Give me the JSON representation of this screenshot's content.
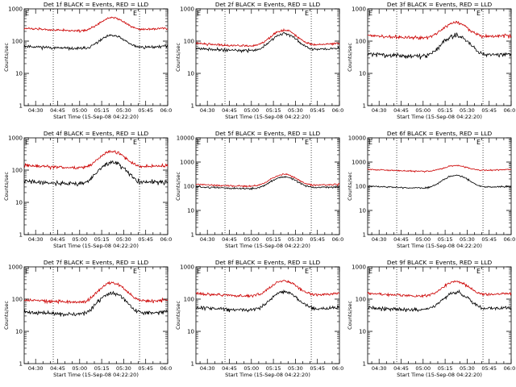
{
  "figure": {
    "ylabel": "Counts/sec",
    "xlabel": "Start Time (15-Sep-08 04:22:20)",
    "colors": {
      "events": "#000000",
      "lld": "#cc0000",
      "axes": "#000000",
      "background": "#ffffff"
    }
  },
  "chart_data": [
    {
      "type": "line",
      "title": "Det 1f BLACK = Events, RED = LLD",
      "marker_e": [
        "E",
        "E"
      ],
      "e_lines": [
        4.7,
        5.68
      ],
      "xlim": [
        4.37,
        6.0
      ],
      "xticks": [
        "04:30",
        "04:45",
        "05:00",
        "05:15",
        "05:30",
        "05:45",
        "06:00"
      ],
      "yscale": "log",
      "ylim": [
        1,
        1000
      ],
      "yticks": [
        "1",
        "10",
        "100",
        "1000"
      ],
      "series": [
        {
          "base": 70,
          "peak": 160,
          "noise": 0.05,
          "seed": 11
        },
        {
          "base": 250,
          "peak": 580,
          "noise": 0.04,
          "seed": 12
        }
      ]
    },
    {
      "type": "line",
      "title": "Det 2f BLACK = Events, RED = LLD",
      "marker_e": [
        "E",
        "E"
      ],
      "e_lines": [
        4.7,
        5.68
      ],
      "xlim": [
        4.37,
        6.0
      ],
      "xticks": [
        "04:30",
        "04:45",
        "05:00",
        "05:15",
        "05:30",
        "05:45",
        "06:00"
      ],
      "yscale": "log",
      "ylim": [
        1,
        1000
      ],
      "yticks": [
        "1",
        "10",
        "100",
        "1000"
      ],
      "series": [
        {
          "base": 60,
          "peak": 180,
          "noise": 0.05,
          "seed": 21
        },
        {
          "base": 85,
          "peak": 230,
          "noise": 0.04,
          "seed": 22
        }
      ]
    },
    {
      "type": "line",
      "title": "Det 3f BLACK = Events, RED = LLD",
      "marker_e": [
        "E",
        "E"
      ],
      "e_lines": [
        4.7,
        5.68
      ],
      "xlim": [
        4.37,
        6.0
      ],
      "xticks": [
        "04:30",
        "04:45",
        "05:00",
        "05:15",
        "05:30",
        "05:45",
        "06:00"
      ],
      "yscale": "log",
      "ylim": [
        1,
        1000
      ],
      "yticks": [
        "1",
        "10",
        "100",
        "1000"
      ],
      "series": [
        {
          "base": 40,
          "peak": 160,
          "noise": 0.08,
          "seed": 31
        },
        {
          "base": 150,
          "peak": 400,
          "noise": 0.06,
          "seed": 32
        }
      ]
    },
    {
      "type": "line",
      "title": "Det 4f BLACK = Events, RED = LLD",
      "marker_e": [
        "E",
        "E"
      ],
      "e_lines": [
        4.7,
        5.68
      ],
      "xlim": [
        4.37,
        6.0
      ],
      "xticks": [
        "04:30",
        "04:45",
        "05:00",
        "05:15",
        "05:30",
        "05:45",
        "06:00"
      ],
      "yscale": "log",
      "ylim": [
        1,
        1000
      ],
      "yticks": [
        "1",
        "10",
        "100",
        "1000"
      ],
      "series": [
        {
          "base": 45,
          "peak": 180,
          "noise": 0.08,
          "seed": 41
        },
        {
          "base": 140,
          "peak": 400,
          "noise": 0.06,
          "seed": 42
        }
      ]
    },
    {
      "type": "line",
      "title": "Det 5f BLACK = Events, RED = LLD",
      "marker_e": [
        "E",
        "E"
      ],
      "e_lines": [
        4.7,
        5.68
      ],
      "xlim": [
        4.37,
        6.0
      ],
      "xticks": [
        "04:30",
        "04:45",
        "05:00",
        "05:15",
        "05:30",
        "05:45",
        "06:00"
      ],
      "yscale": "log",
      "ylim": [
        1,
        10000
      ],
      "yticks": [
        "1",
        "10",
        "100",
        "1000",
        "10000"
      ],
      "series": [
        {
          "base": 95,
          "peak": 260,
          "noise": 0.04,
          "seed": 51
        },
        {
          "base": 120,
          "peak": 330,
          "noise": 0.04,
          "seed": 52
        }
      ]
    },
    {
      "type": "line",
      "title": "Det 6f BLACK = Events, RED = LLD",
      "marker_e": [
        "E",
        "E"
      ],
      "e_lines": [
        4.7,
        5.68
      ],
      "xlim": [
        4.37,
        6.0
      ],
      "xticks": [
        "04:30",
        "04:45",
        "05:00",
        "05:15",
        "05:30",
        "05:45",
        "06:00"
      ],
      "yscale": "log",
      "ylim": [
        1,
        10000
      ],
      "yticks": [
        "1",
        "10",
        "100",
        "1000",
        "10000"
      ],
      "series": [
        {
          "base": 100,
          "peak": 300,
          "noise": 0.04,
          "seed": 61
        },
        {
          "base": 500,
          "peak": 800,
          "noise": 0.03,
          "seed": 62
        }
      ]
    },
    {
      "type": "line",
      "title": "Det 7f BLACK = Events, RED = LLD",
      "marker_e": [
        "E",
        "E"
      ],
      "e_lines": [
        4.7,
        5.68
      ],
      "xlim": [
        4.37,
        6.0
      ],
      "xticks": [
        "04:30",
        "04:45",
        "05:00",
        "05:15",
        "05:30",
        "05:45",
        "06:00"
      ],
      "yscale": "log",
      "ylim": [
        1,
        1000
      ],
      "yticks": [
        "1",
        "10",
        "100",
        "1000"
      ],
      "series": [
        {
          "base": 40,
          "peak": 160,
          "noise": 0.07,
          "seed": 71
        },
        {
          "base": 95,
          "peak": 340,
          "noise": 0.06,
          "seed": 72
        }
      ]
    },
    {
      "type": "line",
      "title": "Det 8f BLACK = Events, RED = LLD",
      "marker_e": [
        "E",
        "E"
      ],
      "e_lines": [
        4.7,
        5.68
      ],
      "xlim": [
        4.37,
        6.0
      ],
      "xticks": [
        "04:30",
        "04:45",
        "05:00",
        "05:15",
        "05:30",
        "05:45",
        "06:00"
      ],
      "yscale": "log",
      "ylim": [
        1,
        1000
      ],
      "yticks": [
        "1",
        "10",
        "100",
        "1000"
      ],
      "series": [
        {
          "base": 55,
          "peak": 180,
          "noise": 0.07,
          "seed": 81
        },
        {
          "base": 150,
          "peak": 400,
          "noise": 0.05,
          "seed": 82
        }
      ]
    },
    {
      "type": "line",
      "title": "Det 9f BLACK = Events, RED = LLD",
      "marker_e": [
        "E",
        "E"
      ],
      "e_lines": [
        4.7,
        5.68
      ],
      "xlim": [
        4.37,
        6.0
      ],
      "xticks": [
        "04:30",
        "04:45",
        "05:00",
        "05:15",
        "05:30",
        "05:45",
        "06:00"
      ],
      "yscale": "log",
      "ylim": [
        1,
        1000
      ],
      "yticks": [
        "1",
        "10",
        "100",
        "1000"
      ],
      "series": [
        {
          "base": 55,
          "peak": 170,
          "noise": 0.07,
          "seed": 91
        },
        {
          "base": 150,
          "peak": 380,
          "noise": 0.05,
          "seed": 92
        }
      ]
    }
  ]
}
